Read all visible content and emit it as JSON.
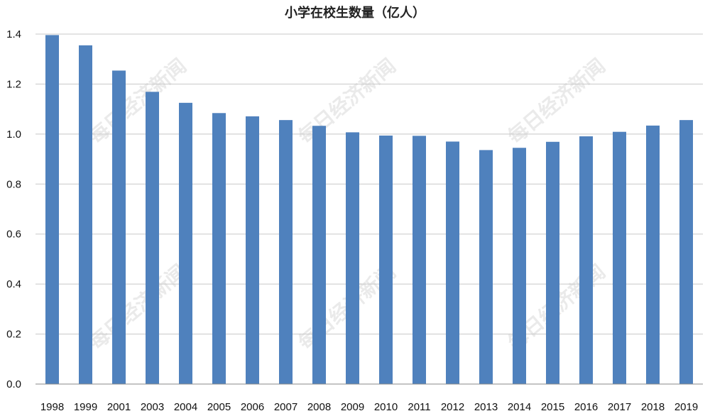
{
  "chart_data": {
    "type": "bar",
    "title": "小学在校生数量（亿人）",
    "xlabel": "",
    "ylabel": "",
    "ylim": [
      0,
      1.4
    ],
    "yticks": [
      "0.0",
      "0.2",
      "0.4",
      "0.6",
      "0.8",
      "1.0",
      "1.2",
      "1.4"
    ],
    "grid": true,
    "bar_color": "#4F81BD",
    "categories": [
      "1998",
      "1999",
      "2001",
      "2003",
      "2004",
      "2005",
      "2006",
      "2007",
      "2008",
      "2009",
      "2010",
      "2011",
      "2012",
      "2013",
      "2014",
      "2015",
      "2016",
      "2017",
      "2018",
      "2019"
    ],
    "values": [
      1.396,
      1.355,
      1.254,
      1.169,
      1.125,
      1.084,
      1.071,
      1.056,
      1.033,
      1.007,
      0.994,
      0.993,
      0.97,
      0.936,
      0.945,
      0.969,
      0.991,
      1.009,
      1.034,
      1.056
    ]
  },
  "watermark": "每日经济新闻"
}
